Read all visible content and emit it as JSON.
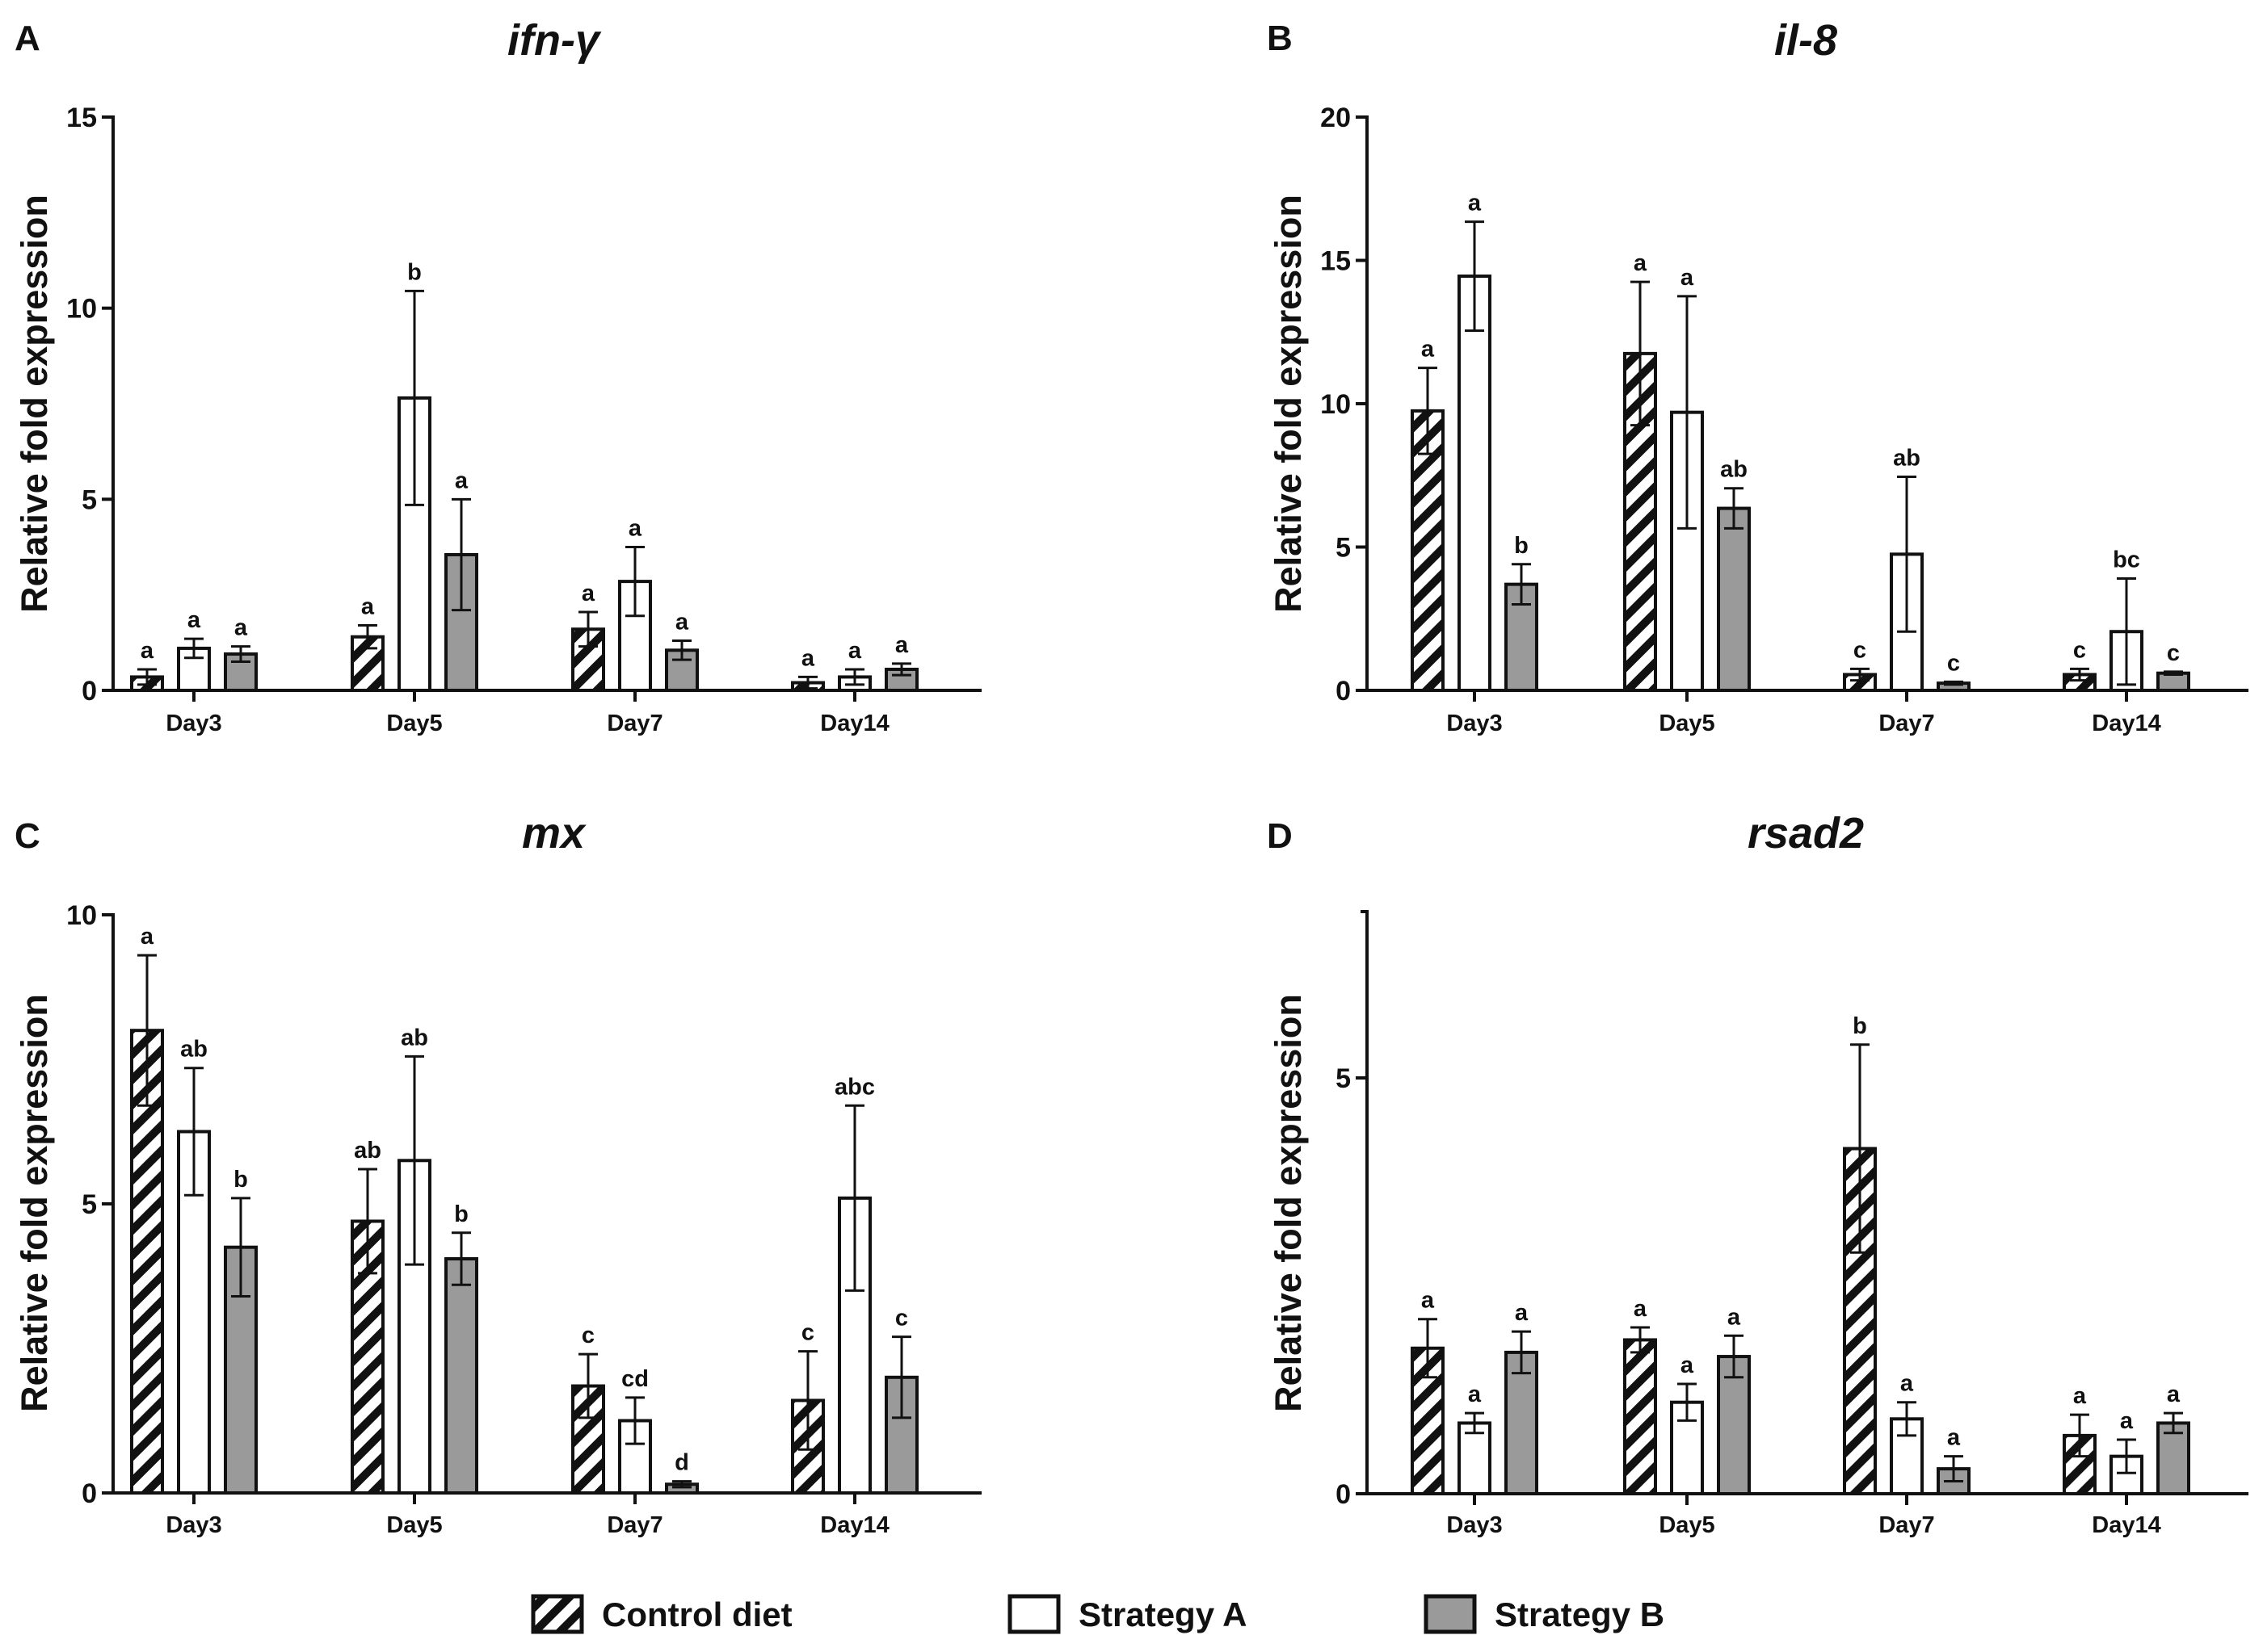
{
  "legend": [
    {
      "label": "Control diet",
      "style": "hatch"
    },
    {
      "label": "Strategy A",
      "style": "white"
    },
    {
      "label": "Strategy B",
      "style": "gray"
    }
  ],
  "colors": {
    "strategy_b": "#9a9a9a",
    "white": "#ffffff",
    "ink": "#111111"
  },
  "chart_data": [
    {
      "panel": "A",
      "title": "ifn-γ",
      "type": "bar",
      "ylabel": "Relative fold expression",
      "ylim": [
        0,
        15
      ],
      "yticks": [
        0,
        5,
        10,
        15
      ],
      "categories": [
        "Day3",
        "Day5",
        "Day7",
        "Day14"
      ],
      "series": [
        {
          "name": "Control diet",
          "values": [
            0.35,
            1.4,
            1.6,
            0.2
          ],
          "errors": [
            0.2,
            0.3,
            0.45,
            0.15
          ],
          "sig": [
            "a",
            "a",
            "a",
            "a"
          ]
        },
        {
          "name": "Strategy A",
          "values": [
            1.1,
            7.65,
            2.85,
            0.35
          ],
          "errors": [
            0.25,
            2.8,
            0.9,
            0.2
          ],
          "sig": [
            "a",
            "b",
            "a",
            "a"
          ]
        },
        {
          "name": "Strategy B",
          "values": [
            0.95,
            3.55,
            1.05,
            0.55
          ],
          "errors": [
            0.2,
            1.45,
            0.25,
            0.15
          ],
          "sig": [
            "a",
            "a",
            "a",
            "a"
          ]
        }
      ]
    },
    {
      "panel": "B",
      "title": "il-8",
      "type": "bar",
      "ylabel": "Relative fold expression",
      "ylim": [
        0,
        20
      ],
      "yticks": [
        0,
        5,
        10,
        15,
        20
      ],
      "categories": [
        "Day3",
        "Day5",
        "Day7",
        "Day14"
      ],
      "series": [
        {
          "name": "Control diet",
          "values": [
            9.75,
            11.75,
            0.55,
            0.55
          ],
          "errors": [
            1.5,
            2.5,
            0.2,
            0.2
          ],
          "sig": [
            "a",
            "a",
            "c",
            "c"
          ]
        },
        {
          "name": "Strategy A",
          "values": [
            14.45,
            9.7,
            4.75,
            2.05
          ],
          "errors": [
            1.9,
            4.05,
            2.7,
            1.85
          ],
          "sig": [
            "a",
            "a",
            "ab",
            "bc"
          ]
        },
        {
          "name": "Strategy B",
          "values": [
            3.7,
            6.35,
            0.25,
            0.6
          ],
          "errors": [
            0.7,
            0.7,
            0.05,
            0.05
          ],
          "sig": [
            "b",
            "ab",
            "c",
            "c"
          ]
        }
      ]
    },
    {
      "panel": "C",
      "title": "mx",
      "type": "bar",
      "ylabel": "Relative fold expression",
      "ylim": [
        0,
        10
      ],
      "yticks": [
        0,
        5,
        10
      ],
      "categories": [
        "Day3",
        "Day5",
        "Day7",
        "Day14"
      ],
      "series": [
        {
          "name": "Control diet",
          "values": [
            8.0,
            4.7,
            1.85,
            1.6
          ],
          "errors": [
            1.3,
            0.9,
            0.55,
            0.85
          ],
          "sig": [
            "a",
            "ab",
            "c",
            "c"
          ]
        },
        {
          "name": "Strategy A",
          "values": [
            6.25,
            5.75,
            1.25,
            5.1
          ],
          "errors": [
            1.1,
            1.8,
            0.4,
            1.6
          ],
          "sig": [
            "ab",
            "ab",
            "cd",
            "abc"
          ]
        },
        {
          "name": "Strategy B",
          "values": [
            4.25,
            4.05,
            0.15,
            2.0
          ],
          "errors": [
            0.85,
            0.45,
            0.05,
            0.7
          ],
          "sig": [
            "b",
            "b",
            "d",
            "c"
          ]
        }
      ]
    },
    {
      "panel": "D",
      "title": "rsad2",
      "type": "bar",
      "ylabel": "Relative fold expression",
      "ylim": [
        0,
        7
      ],
      "yticks": [
        0,
        5
      ],
      "categories": [
        "Day3",
        "Day5",
        "Day7",
        "Day14"
      ],
      "series": [
        {
          "name": "Control diet",
          "values": [
            1.75,
            1.85,
            4.15,
            0.7
          ],
          "errors": [
            0.35,
            0.15,
            1.25,
            0.25
          ],
          "sig": [
            "a",
            "a",
            "b",
            "a"
          ]
        },
        {
          "name": "Strategy A",
          "values": [
            0.85,
            1.1,
            0.9,
            0.45
          ],
          "errors": [
            0.12,
            0.22,
            0.2,
            0.2
          ],
          "sig": [
            "a",
            "a",
            "a",
            "a"
          ]
        },
        {
          "name": "Strategy B",
          "values": [
            1.7,
            1.65,
            0.3,
            0.85
          ],
          "errors": [
            0.25,
            0.25,
            0.15,
            0.12
          ],
          "sig": [
            "a",
            "a",
            "a",
            "a"
          ]
        }
      ]
    }
  ]
}
